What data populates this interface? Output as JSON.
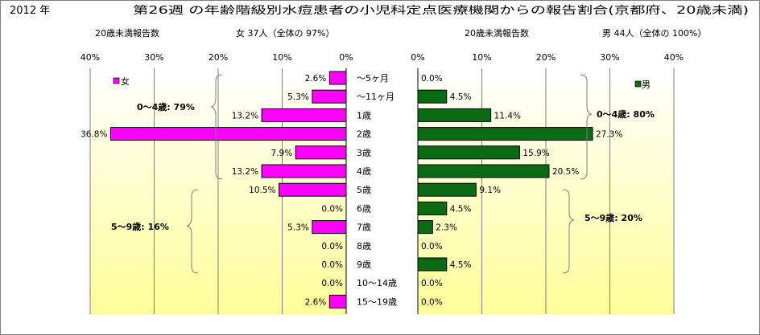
{
  "header": {
    "year": "2012 年",
    "title": "第26週 の年齢階級別水痘患者の小児科定点医療機関からの報告割合(京都府、20歳未満)"
  },
  "chart_data": [
    {
      "type": "bar",
      "orientation": "horizontal",
      "direction": "right-to-left",
      "subtitle_left": "20歳未満報告数",
      "subtitle_right": "女 37人（全体の 97%）",
      "categories": [
        "～5ヶ月",
        "～11ヶ月",
        "1歳",
        "2歳",
        "3歳",
        "4歳",
        "5歳",
        "6歳",
        "7歳",
        "8歳",
        "9歳",
        "10～14歳",
        "15～19歳"
      ],
      "series": [
        {
          "name": "女",
          "color": "#ff00ff",
          "values": [
            2.6,
            5.3,
            13.2,
            36.8,
            7.9,
            13.2,
            10.5,
            0.0,
            5.3,
            0.0,
            0.0,
            0.0,
            2.6
          ],
          "labels": [
            "2.6%",
            "5.3%",
            "13.2%",
            "36.8%",
            "7.9%",
            "13.2%",
            "10.5%",
            "0.0%",
            "5.3%",
            "0.0%",
            "0.0%",
            "0.0%",
            "2.6%"
          ]
        }
      ],
      "xlim": [
        0,
        40
      ],
      "ticks": [
        "40%",
        "30%",
        "20%",
        "10%",
        "0%"
      ],
      "legend_position": "top-left",
      "grid": true,
      "annotations": [
        "0～4歳: 79%",
        "5～9歳: 16%"
      ]
    },
    {
      "type": "bar",
      "orientation": "horizontal",
      "direction": "left-to-right",
      "subtitle_left": "20歳未満報告数",
      "subtitle_right": "男 44人（全体の 100%）",
      "categories": [
        "～5ヶ月",
        "～11ヶ月",
        "1歳",
        "2歳",
        "3歳",
        "4歳",
        "5歳",
        "6歳",
        "7歳",
        "8歳",
        "9歳",
        "10～14歳",
        "15～19歳"
      ],
      "series": [
        {
          "name": "男",
          "color": "#0a6b14",
          "values": [
            0.0,
            4.5,
            11.4,
            27.3,
            15.9,
            20.5,
            9.1,
            4.5,
            2.3,
            0.0,
            4.5,
            0.0,
            0.0
          ],
          "labels": [
            "0.0%",
            "4.5%",
            "11.4%",
            "27.3%",
            "15.9%",
            "20.5%",
            "9.1%",
            "4.5%",
            "2.3%",
            "0.0%",
            "4.5%",
            "0.0%",
            "0.0%"
          ]
        }
      ],
      "xlim": [
        0,
        40
      ],
      "ticks": [
        "0%",
        "10%",
        "20%",
        "30%",
        "40%"
      ],
      "legend_position": "top-right",
      "grid": true,
      "annotations": [
        "0～4歳: 80%",
        "5～9歳: 20%"
      ]
    }
  ]
}
